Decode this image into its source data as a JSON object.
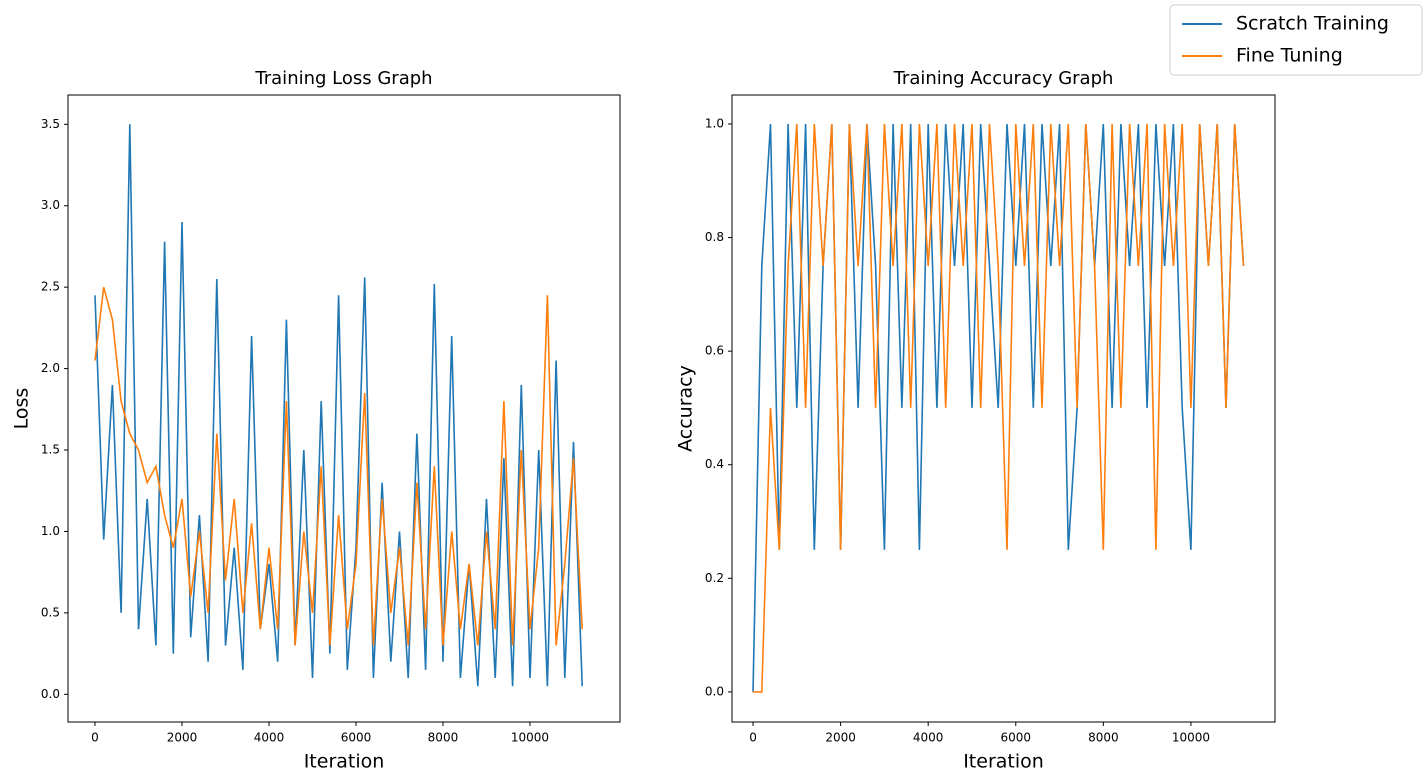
{
  "chart_data": [
    {
      "type": "line",
      "title": "Training Loss Graph",
      "x_label": "Iteration",
      "y_label": "Loss",
      "x": [
        0,
        200,
        400,
        600,
        800,
        1000,
        1200,
        1400,
        1600,
        1800,
        2000,
        2200,
        2400,
        2600,
        2800,
        3000,
        3200,
        3400,
        3600,
        3800,
        4000,
        4200,
        4400,
        4600,
        4800,
        5000,
        5200,
        5400,
        5600,
        5800,
        6000,
        6200,
        6400,
        6600,
        6800,
        7000,
        7200,
        7400,
        7600,
        7800,
        8000,
        8200,
        8400,
        8600,
        8800,
        9000,
        9200,
        9400,
        9600,
        9800,
        10000,
        10200,
        10400,
        10600,
        10800,
        11000,
        11200
      ],
      "series": [
        {
          "name": "Scratch Training",
          "color": "#1f77b4",
          "values": [
            2.45,
            0.95,
            1.9,
            0.5,
            3.5,
            0.4,
            1.2,
            0.3,
            2.78,
            0.25,
            2.9,
            0.35,
            1.1,
            0.2,
            2.55,
            0.3,
            0.9,
            0.15,
            2.2,
            0.4,
            0.8,
            0.2,
            2.3,
            0.3,
            1.5,
            0.1,
            1.8,
            0.25,
            2.45,
            0.15,
            0.9,
            2.56,
            0.1,
            1.3,
            0.2,
            1.0,
            0.1,
            1.6,
            0.15,
            2.52,
            0.2,
            2.2,
            0.1,
            0.8,
            0.05,
            1.2,
            0.1,
            1.45,
            0.05,
            1.9,
            0.1,
            1.5,
            0.05,
            2.05,
            0.1,
            1.55,
            0.05
          ]
        },
        {
          "name": "Fine Tuning",
          "color": "#ff7f0e",
          "values": [
            2.05,
            2.5,
            2.3,
            1.8,
            1.6,
            1.5,
            1.3,
            1.4,
            1.1,
            0.9,
            1.2,
            0.6,
            1.0,
            0.5,
            1.6,
            0.7,
            1.2,
            0.5,
            1.05,
            0.4,
            0.9,
            0.4,
            1.8,
            0.3,
            1.0,
            0.5,
            1.4,
            0.3,
            1.1,
            0.4,
            0.8,
            1.85,
            0.3,
            1.2,
            0.5,
            0.9,
            0.3,
            1.3,
            0.4,
            1.4,
            0.3,
            1.0,
            0.4,
            0.8,
            0.3,
            1.0,
            0.4,
            1.8,
            0.3,
            1.5,
            0.4,
            0.9,
            2.45,
            0.3,
            0.8,
            1.45,
            0.4
          ]
        }
      ],
      "xlim": [
        -620,
        12070
      ],
      "xticks": [
        0,
        2000,
        4000,
        6000,
        8000,
        10000
      ],
      "ylim": [
        -0.17,
        3.68
      ],
      "yticks": [
        {
          "value": 0,
          "label": "0.0"
        },
        0.5,
        {
          "value": 1,
          "label": "1.0"
        },
        1.5,
        {
          "value": 2,
          "label": "2.0"
        },
        2.5,
        {
          "value": 3,
          "label": "3.0"
        },
        3.5
      ],
      "legend": "upper right"
    },
    {
      "type": "line",
      "title": "Training Accuracy Graph",
      "x_label": "Iteration",
      "y_label": "Accuracy",
      "x": [
        0,
        200,
        400,
        600,
        800,
        1000,
        1200,
        1400,
        1600,
        1800,
        2000,
        2200,
        2400,
        2600,
        2800,
        3000,
        3200,
        3400,
        3600,
        3800,
        4000,
        4200,
        4400,
        4600,
        4800,
        5000,
        5200,
        5400,
        5600,
        5800,
        6000,
        6200,
        6400,
        6600,
        6800,
        7000,
        7200,
        7400,
        7600,
        7800,
        8000,
        8200,
        8400,
        8600,
        8800,
        9000,
        9200,
        9400,
        9600,
        9800,
        10000,
        10200,
        10400,
        10600,
        10800,
        11000,
        11200
      ],
      "series": [
        {
          "name": "Scratch Training",
          "color": "#1f77b4",
          "values": [
            0,
            0.75,
            1,
            0.25,
            1,
            0.5,
            1,
            0.25,
            0.75,
            1,
            0.25,
            1,
            0.5,
            1,
            0.75,
            0.25,
            1,
            0.5,
            1,
            0.25,
            1,
            0.5,
            1,
            0.75,
            1,
            0.5,
            1,
            0.75,
            0.5,
            1,
            0.75,
            1,
            0.5,
            1,
            0.75,
            1,
            0.25,
            0.5,
            1,
            0.75,
            1,
            0.5,
            1,
            0.75,
            1,
            0.5,
            1,
            0.75,
            1,
            0.5,
            0.25,
            1,
            0.75,
            1,
            0.5,
            1,
            0.75
          ]
        },
        {
          "name": "Fine Tuning",
          "color": "#ff7f0e",
          "values": [
            0,
            0,
            0.5,
            0.25,
            0.75,
            1,
            0.5,
            1,
            0.75,
            1,
            0.25,
            1,
            0.75,
            1,
            0.5,
            1,
            0.75,
            1,
            0.5,
            1,
            0.75,
            1,
            0.5,
            1,
            0.75,
            1,
            0.5,
            1,
            0.75,
            0.25,
            1,
            0.75,
            1,
            0.5,
            1,
            0.75,
            1,
            0.5,
            1,
            0.75,
            0.25,
            1,
            0.5,
            1,
            0.75,
            1,
            0.25,
            1,
            0.75,
            1,
            0.5,
            1,
            0.75,
            1,
            0.5,
            1,
            0.75
          ]
        }
      ],
      "xlim": [
        -480,
        11920
      ],
      "xticks": [
        0,
        2000,
        4000,
        6000,
        8000,
        10000
      ],
      "ylim": [
        -0.053,
        1.051
      ],
      "yticks": [
        {
          "value": 0,
          "label": "0.0"
        },
        0.2,
        0.4,
        0.6,
        0.8,
        {
          "value": 1,
          "label": "1.0"
        }
      ]
    }
  ]
}
